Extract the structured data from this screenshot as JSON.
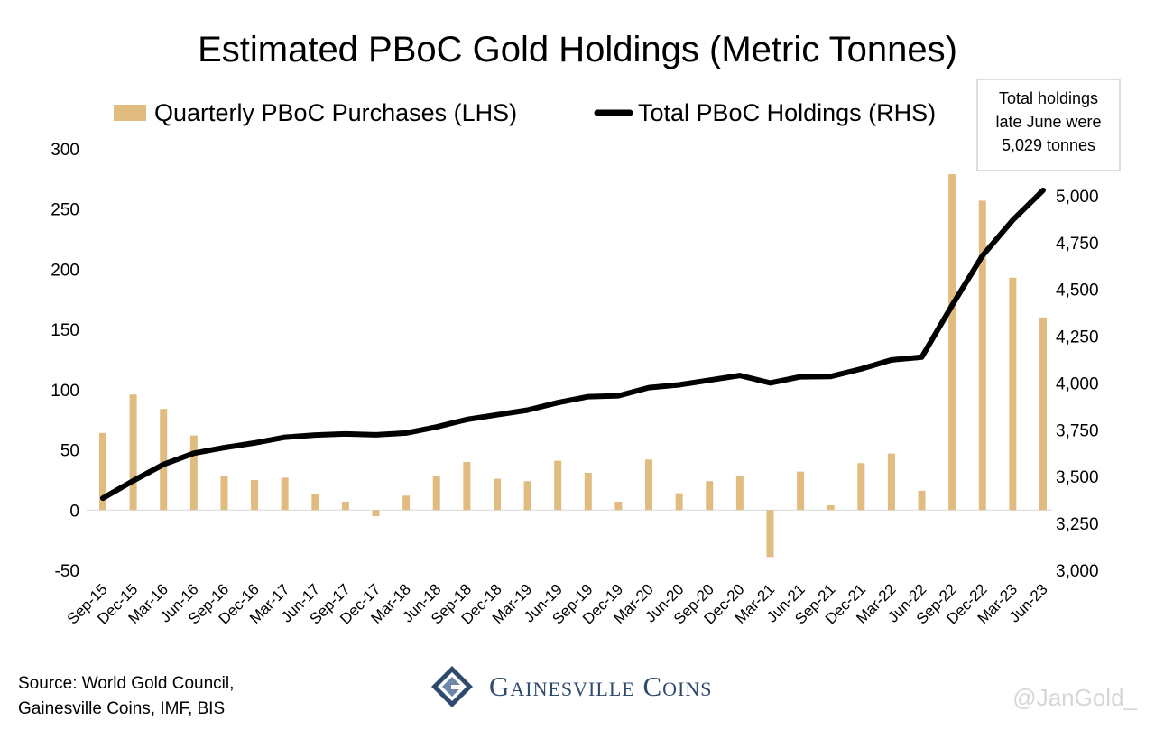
{
  "chart_data": {
    "type": "bar+line",
    "title": "Estimated PBoC Gold Holdings (Metric Tonnes)",
    "legend": {
      "placement": "top",
      "bar_label": "Quarterly PBoC Purchases (LHS)",
      "line_label": "Total PBoC Holdings (RHS)"
    },
    "note": {
      "lines": [
        "Total holdings",
        "late June were",
        "5,029 tonnes"
      ]
    },
    "categories": [
      "Sep-15",
      "Dec-15",
      "Mar-16",
      "Jun-16",
      "Sep-16",
      "Dec-16",
      "Mar-17",
      "Jun-17",
      "Sep-17",
      "Dec-17",
      "Mar-18",
      "Jun-18",
      "Sep-18",
      "Dec-18",
      "Mar-19",
      "Jun-19",
      "Sep-19",
      "Dec-19",
      "Mar-20",
      "Jun-20",
      "Sep-20",
      "Dec-20",
      "Mar-21",
      "Jun-21",
      "Sep-21",
      "Dec-21",
      "Mar-22",
      "Jun-22",
      "Sep-22",
      "Dec-22",
      "Mar-23",
      "Jun-23"
    ],
    "left_axis": {
      "ylim": [
        -50,
        300
      ],
      "ticks": [
        -50,
        0,
        50,
        100,
        150,
        200,
        250,
        300
      ],
      "tick_labels": [
        "-50",
        "0",
        "50",
        "100",
        "150",
        "200",
        "250",
        "300"
      ]
    },
    "right_axis": {
      "ylim": [
        3000,
        5250
      ],
      "ticks": [
        3000,
        3250,
        3500,
        3750,
        4000,
        4250,
        4500,
        4750,
        5000
      ],
      "tick_labels": [
        "3,000",
        "3,250",
        "3,500",
        "3,750",
        "4,000",
        "4,250",
        "4,500",
        "4,750",
        "5,000"
      ]
    },
    "series": [
      {
        "name": "Quarterly PBoC Purchases (LHS)",
        "type": "bar",
        "axis": "left",
        "color": "#e0bc81",
        "values": [
          64,
          96,
          84,
          62,
          28,
          25,
          27,
          13,
          7,
          -5,
          12,
          28,
          40,
          26,
          24,
          41,
          31,
          7,
          42,
          14,
          24,
          28,
          -39,
          32,
          4,
          39,
          47,
          16,
          279,
          257,
          193,
          160
        ]
      },
      {
        "name": "Total PBoC Holdings (RHS)",
        "type": "line",
        "axis": "right",
        "color": "#000000",
        "values": [
          3385,
          3478,
          3565,
          3625,
          3655,
          3680,
          3710,
          3722,
          3728,
          3723,
          3733,
          3765,
          3805,
          3830,
          3855,
          3895,
          3927,
          3932,
          3975,
          3990,
          4015,
          4040,
          4000,
          4033,
          4035,
          4075,
          4123,
          4138,
          4415,
          4680,
          4870,
          5029
        ]
      }
    ],
    "grid": false
  },
  "footer": {
    "source_line1": "Source: World Gold Council,",
    "source_line2": "Gainesville Coins, IMF, BIS",
    "brand": "Gainesville Coins",
    "watermark": "@JanGold_"
  }
}
